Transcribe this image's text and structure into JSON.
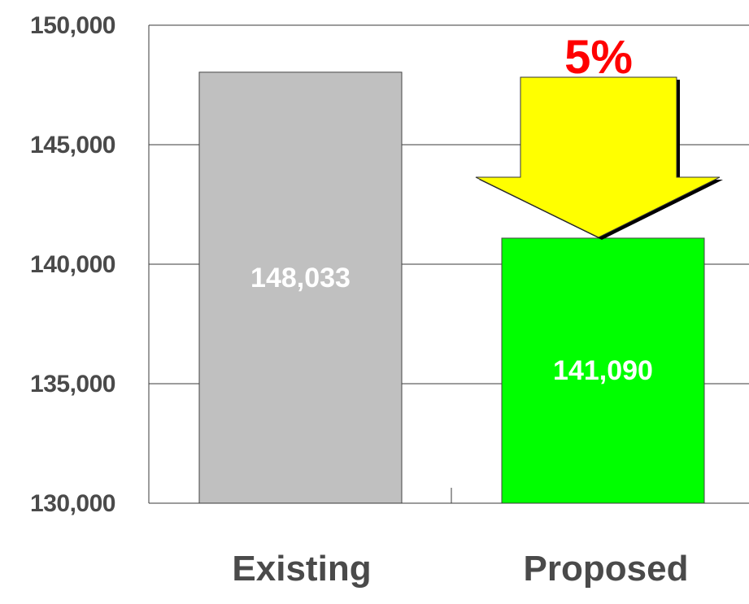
{
  "chart_data": {
    "type": "bar",
    "categories": [
      "Existing",
      "Proposed"
    ],
    "values": [
      148033,
      141090
    ],
    "value_labels": [
      "148,033",
      "141,090"
    ],
    "ylim": [
      130000,
      150000
    ],
    "yticks": [
      130000,
      135000,
      140000,
      145000,
      150000
    ],
    "ytick_labels": [
      "130,000",
      "135,000",
      "140,000",
      "145,000",
      "150,000"
    ],
    "bar_colors": [
      "#c0c0c0",
      "#00ff00"
    ],
    "grid": true,
    "annotation": {
      "text": "5%",
      "text_color": "#ff0000",
      "arrow_color": "#ffff00",
      "direction": "down"
    },
    "title": "",
    "xlabel": "",
    "ylabel": ""
  }
}
